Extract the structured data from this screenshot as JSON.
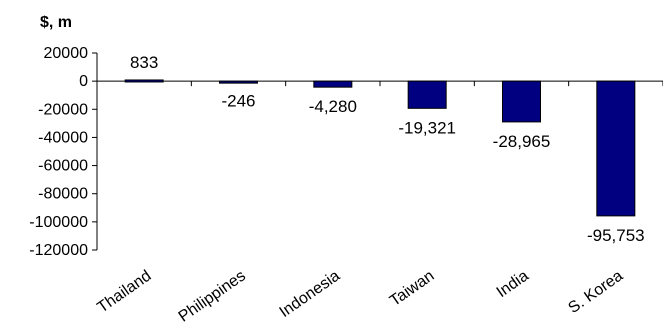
{
  "chart_data": {
    "type": "bar",
    "ylabel": "$, m",
    "categories": [
      "Thailand",
      "Philippines",
      "Indonesia",
      "Taiwan",
      "India",
      "S. Korea"
    ],
    "values": [
      833,
      -246,
      -4280,
      -19321,
      -28965,
      -95753
    ],
    "data_labels": [
      "833",
      "-246",
      "-4,280",
      "-19,321",
      "-28,965",
      "-95,753"
    ],
    "yticks": [
      20000,
      0,
      -20000,
      -40000,
      -60000,
      -80000,
      -100000,
      -120000
    ],
    "ylim": [
      -120000,
      20000
    ],
    "grid": false,
    "legend": "none",
    "colors": {
      "bar": "#000080",
      "bar_edge": "#000000",
      "axis": "#000000"
    }
  }
}
